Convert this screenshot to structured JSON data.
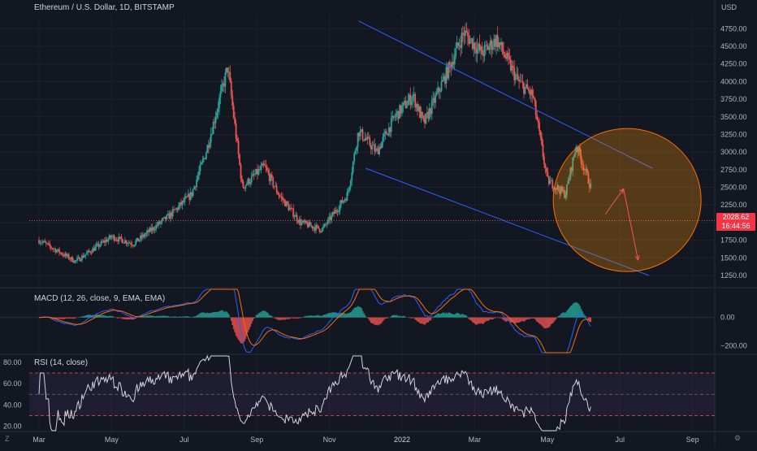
{
  "header": {
    "title": "Ethereum / U.S. Dollar, 1D, BITSTAMP",
    "currency": "USD"
  },
  "price_badge": {
    "price": "2028.62",
    "countdown": "16:44:56"
  },
  "corner": {
    "left": "Z",
    "right": "⚙"
  },
  "colors": {
    "up": "#26a69a",
    "down": "#ef5350",
    "channel": "#2962ff",
    "circle": "#ff6d00",
    "bg": "#131722",
    "grid": "#1e222d",
    "macd": "#2962ff",
    "signal": "#ff6d00",
    "rsi": "#d1d4dc"
  },
  "chart_data": [
    {
      "type": "candlestick",
      "title": "Ethereum / U.S. Dollar, 1D, BITSTAMP",
      "x_ticks": [
        "Mar",
        "May",
        "Jul",
        "Sep",
        "Nov",
        "2022",
        "Mar",
        "May",
        "Jul",
        "Sep"
      ],
      "y_ticks": [
        1250,
        1500,
        1750,
        2000,
        2250,
        2500,
        2750,
        3000,
        3250,
        3500,
        3750,
        4000,
        4250,
        4500,
        4750
      ],
      "ylim": [
        1100,
        4950
      ],
      "last_price": 2028.62,
      "path_months": [
        0,
        1,
        2,
        2.6,
        3.6,
        4.2,
        4.6,
        5.2,
        5.6,
        6.2,
        6.6,
        7.2,
        7.8,
        8.5,
        8.8,
        9.3,
        9.8,
        10.3,
        10.6,
        11.3,
        11.7,
        12.2,
        12.6,
        13.2,
        13.6,
        14.0,
        14.5,
        14.8,
        15.2
      ],
      "path_prices": [
        1750,
        1450,
        1800,
        1700,
        2100,
        2400,
        3000,
        4200,
        2500,
        2800,
        2400,
        2000,
        1900,
        2400,
        3300,
        3000,
        3500,
        3800,
        3400,
        4200,
        4700,
        4400,
        4600,
        4000,
        3800,
        2600,
        2400,
        3100,
        2500
      ],
      "annotations": [
        {
          "type": "trendline",
          "from": [
            8.8,
            4860
          ],
          "to": [
            16.9,
            2770
          ]
        },
        {
          "type": "trendline",
          "from": [
            9.0,
            2770
          ],
          "to": [
            16.8,
            1250
          ]
        },
        {
          "type": "circle",
          "center": [
            16.2,
            2320
          ],
          "radius_label": "ellipse"
        },
        {
          "type": "arrow",
          "from": [
            15.6,
            2120
          ],
          "to": [
            16.1,
            2480
          ]
        },
        {
          "type": "arrow",
          "from": [
            16.1,
            2480
          ],
          "to": [
            16.5,
            1470
          ]
        }
      ]
    },
    {
      "type": "line",
      "title": "MACD (12, 26, close, 9, EMA, EMA)",
      "y_ticks": [
        0,
        -200
      ],
      "y_tick_labels": [
        "0.00",
        "−200.00"
      ],
      "ylim": [
        -250,
        200
      ]
    },
    {
      "type": "line",
      "title": "RSI (14, close)",
      "y_ticks": [
        80,
        60,
        40,
        20
      ],
      "y_tick_labels": [
        "80.00",
        "60.00",
        "40.00",
        "20.00"
      ],
      "ylim": [
        16,
        86
      ],
      "bands": [
        70,
        50,
        30
      ]
    }
  ]
}
